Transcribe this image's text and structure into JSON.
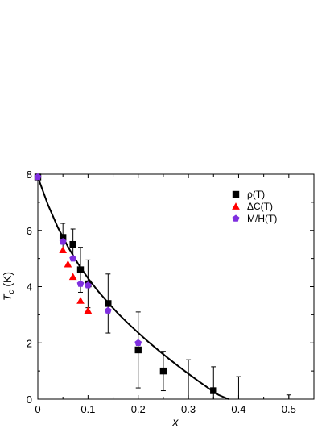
{
  "chart_data": {
    "type": "scatter",
    "xlabel": "x",
    "ylabel_main": "T",
    "ylabel_sub": "c",
    "ylabel_unit": " (K)",
    "xlim": [
      0,
      0.55
    ],
    "ylim": [
      0,
      8
    ],
    "x_ticks": [
      0,
      0.1,
      0.2,
      0.3,
      0.4,
      0.5
    ],
    "x_tick_labels": [
      "0",
      "0.1",
      "0.2",
      "0.3",
      "0.4",
      "0.5"
    ],
    "y_ticks": [
      0,
      2,
      4,
      6,
      8
    ],
    "y_tick_labels": [
      "0",
      "2",
      "4",
      "6",
      "8"
    ],
    "legend_position": "top-right",
    "series": [
      {
        "name": "ρ(T)",
        "marker": "square",
        "color": "#000000",
        "points": [
          {
            "x": 0.0,
            "y": 7.9,
            "err": 0
          },
          {
            "x": 0.05,
            "y": 5.75,
            "err": 0.5
          },
          {
            "x": 0.07,
            "y": 5.5,
            "err": 0.55
          },
          {
            "x": 0.085,
            "y": 4.6,
            "err": 0.8
          },
          {
            "x": 0.1,
            "y": 4.1,
            "err": 0.85
          },
          {
            "x": 0.14,
            "y": 3.4,
            "err": 1.05
          },
          {
            "x": 0.2,
            "y": 1.75,
            "err": 1.35
          },
          {
            "x": 0.25,
            "y": 1.0,
            "err": 0.7
          },
          {
            "x": 0.35,
            "y": 0.3,
            "err": 0.85
          }
        ]
      },
      {
        "name": "ΔC(T)",
        "marker": "triangle",
        "color": "#ff0000",
        "points": [
          {
            "x": 0.05,
            "y": 5.3
          },
          {
            "x": 0.06,
            "y": 4.8
          },
          {
            "x": 0.07,
            "y": 4.35
          },
          {
            "x": 0.085,
            "y": 3.5
          },
          {
            "x": 0.1,
            "y": 3.15
          }
        ]
      },
      {
        "name": "M/H(T)",
        "marker": "pentagon",
        "color": "#7f2fdf",
        "points": [
          {
            "x": 0.0,
            "y": 7.9
          },
          {
            "x": 0.05,
            "y": 5.6
          },
          {
            "x": 0.07,
            "y": 5.0
          },
          {
            "x": 0.085,
            "y": 4.1
          },
          {
            "x": 0.1,
            "y": 4.05
          },
          {
            "x": 0.14,
            "y": 3.15
          },
          {
            "x": 0.2,
            "y": 2.0
          }
        ]
      }
    ],
    "extra_error_bars": [
      {
        "x": 0.3,
        "y": 0,
        "up": 1.4
      },
      {
        "x": 0.4,
        "y": 0,
        "up": 0.8
      },
      {
        "x": 0.5,
        "y": 0,
        "up": 0.15
      }
    ],
    "fit_curve": {
      "x": [
        0,
        0.02,
        0.04,
        0.06,
        0.08,
        0.1,
        0.12,
        0.14,
        0.16,
        0.18,
        0.2,
        0.22,
        0.24,
        0.26,
        0.28,
        0.3,
        0.32,
        0.34,
        0.36,
        0.38
      ],
      "y": [
        7.9,
        6.92,
        6.1,
        5.42,
        4.82,
        4.3,
        3.84,
        3.43,
        3.04,
        2.69,
        2.36,
        2.04,
        1.74,
        1.45,
        1.17,
        0.9,
        0.64,
        0.39,
        0.15,
        0.0
      ]
    }
  }
}
